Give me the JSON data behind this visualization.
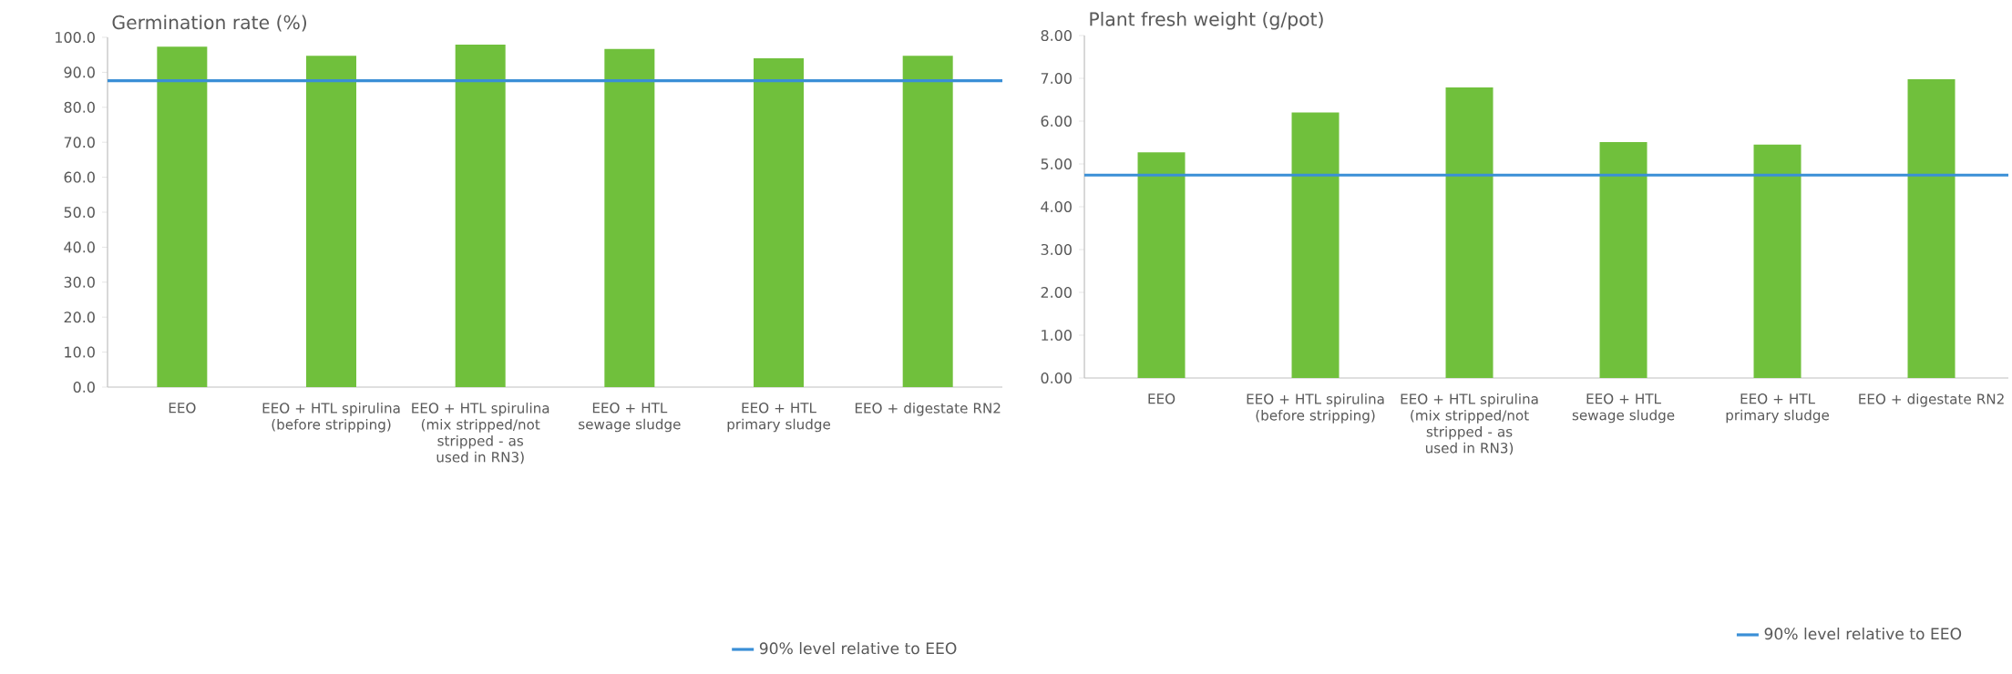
{
  "chart_data": [
    {
      "type": "bar",
      "title": "Germination rate (%)",
      "categories": [
        "EEO",
        "EEO + HTL spirulina (before stripping)",
        "EEO + HTL spirulina (mix stripped/not stripped - as used in RN3)",
        "EEO + HTL sewage sludge",
        "EEO + HTL primary sludge",
        "EEO + digestate RN2"
      ],
      "values": [
        97.3,
        94.7,
        97.9,
        96.7,
        94.0,
        94.7
      ],
      "color": "#70c03c",
      "ylim": [
        0,
        100
      ],
      "yticks": [
        {
          "value": 0,
          "label": "0.0"
        },
        {
          "value": 10,
          "label": "10.0"
        },
        {
          "value": 20,
          "label": "20.0"
        },
        {
          "value": 30,
          "label": "30.0"
        },
        {
          "value": 40,
          "label": "40.0"
        },
        {
          "value": 50,
          "label": "50.0"
        },
        {
          "value": 60,
          "label": "60.0"
        },
        {
          "value": 70,
          "label": "70.0"
        },
        {
          "value": 80,
          "label": "80.0"
        },
        {
          "value": 90,
          "label": "90.0"
        },
        {
          "value": 100,
          "label": "100.0"
        }
      ],
      "ref_lines": [
        {
          "axis": "y",
          "value": 87.6,
          "label": "90% level relative to EEO",
          "color": "#3a8fd6"
        }
      ],
      "legend": "bottom right"
    },
    {
      "type": "bar",
      "title": "Plant fresh weight (g/pot)",
      "categories": [
        "EEO",
        "EEO + HTL spirulina (before stripping)",
        "EEO + HTL spirulina (mix stripped/not stripped - as used in RN3)",
        "EEO + HTL sewage sludge",
        "EEO + HTL primary sludge",
        "EEO + digestate RN2"
      ],
      "values": [
        5.27,
        6.2,
        6.79,
        5.51,
        5.45,
        6.98
      ],
      "color": "#70c03c",
      "ylim": [
        0,
        8
      ],
      "yticks": [
        {
          "value": 0,
          "label": "0.00"
        },
        {
          "value": 1,
          "label": "1.00"
        },
        {
          "value": 2,
          "label": "2.00"
        },
        {
          "value": 3,
          "label": "3.00"
        },
        {
          "value": 4,
          "label": "4.00"
        },
        {
          "value": 5,
          "label": "5.00"
        },
        {
          "value": 6,
          "label": "6.00"
        },
        {
          "value": 7,
          "label": "7.00"
        },
        {
          "value": 8,
          "label": "8.00"
        }
      ],
      "ref_lines": [
        {
          "axis": "y",
          "value": 4.74,
          "label": "90% level relative to EEO",
          "color": "#3a8fd6"
        }
      ],
      "legend": "bottom right"
    }
  ]
}
